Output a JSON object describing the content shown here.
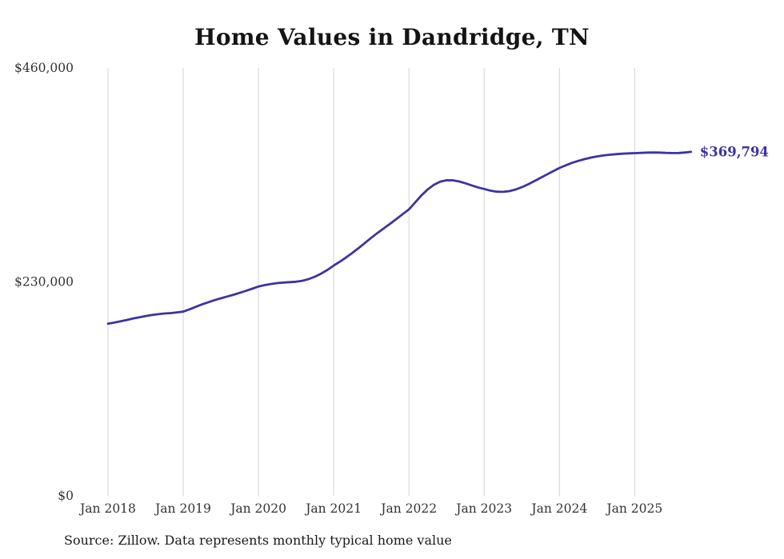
{
  "chart_data": {
    "type": "line",
    "title": "Home Values in Dandridge, TN",
    "source": "Source: Zillow. Data represents monthly typical home value",
    "end_label": "$369,794",
    "final_value": 369794,
    "ylabel": "",
    "xlabel": "",
    "ylim": [
      0,
      460000
    ],
    "grid": true,
    "legend": "none",
    "y_ticks": [
      {
        "value": 0,
        "label": "$0"
      },
      {
        "value": 230000,
        "label": "$230,000"
      },
      {
        "value": 460000,
        "label": "$460,000"
      }
    ],
    "x_ticks": [
      "Jan 2018",
      "Jan 2019",
      "Jan 2020",
      "Jan 2021",
      "Jan 2022",
      "Jan 2023",
      "Jan 2024",
      "Jan 2025"
    ],
    "months": [
      "2018-01",
      "2018-02",
      "2018-03",
      "2018-04",
      "2018-05",
      "2018-06",
      "2018-07",
      "2018-08",
      "2018-09",
      "2018-10",
      "2018-11",
      "2018-12",
      "2019-01",
      "2019-02",
      "2019-03",
      "2019-04",
      "2019-05",
      "2019-06",
      "2019-07",
      "2019-08",
      "2019-09",
      "2019-10",
      "2019-11",
      "2019-12",
      "2020-01",
      "2020-02",
      "2020-03",
      "2020-04",
      "2020-05",
      "2020-06",
      "2020-07",
      "2020-08",
      "2020-09",
      "2020-10",
      "2020-11",
      "2020-12",
      "2021-01",
      "2021-02",
      "2021-03",
      "2021-04",
      "2021-05",
      "2021-06",
      "2021-07",
      "2021-08",
      "2021-09",
      "2021-10",
      "2021-11",
      "2021-12",
      "2022-01",
      "2022-02",
      "2022-03",
      "2022-04",
      "2022-05",
      "2022-06",
      "2022-07",
      "2022-08",
      "2022-09",
      "2022-10",
      "2022-11",
      "2022-12",
      "2023-01",
      "2023-02",
      "2023-03",
      "2023-04",
      "2023-05",
      "2023-06",
      "2023-07",
      "2023-08",
      "2023-09",
      "2023-10",
      "2023-11",
      "2023-12",
      "2024-01",
      "2024-02",
      "2024-03",
      "2024-04",
      "2024-05",
      "2024-06",
      "2024-07",
      "2024-08",
      "2024-09",
      "2024-10",
      "2024-11",
      "2024-12",
      "2025-01",
      "2025-02",
      "2025-03",
      "2025-04",
      "2025-05",
      "2025-06",
      "2025-07",
      "2025-08",
      "2025-09",
      "2025-10"
    ],
    "values": [
      185000,
      186200,
      187600,
      189100,
      190600,
      192000,
      193300,
      194400,
      195300,
      196000,
      196500,
      197200,
      198000,
      200500,
      203200,
      205800,
      208200,
      210400,
      212400,
      214300,
      216200,
      218200,
      220400,
      222700,
      225000,
      226600,
      227800,
      228700,
      229300,
      229700,
      230200,
      231200,
      233000,
      235600,
      238900,
      242900,
      247500,
      251800,
      256400,
      261300,
      266500,
      272000,
      277500,
      282700,
      287600,
      292500,
      297600,
      302800,
      308000,
      315500,
      323000,
      329500,
      334500,
      337800,
      339300,
      339200,
      338000,
      336000,
      333800,
      331600,
      329900,
      328100,
      327000,
      326800,
      327600,
      329300,
      331800,
      334900,
      338300,
      341900,
      345500,
      349000,
      352500,
      355300,
      357900,
      360100,
      362000,
      363600,
      364900,
      365900,
      366700,
      367300,
      367800,
      368200,
      368400,
      368700,
      369000,
      369100,
      369000,
      368700,
      368500,
      368600,
      369100,
      369794
    ],
    "line_color": "#3d33a2",
    "grid_color": "#d2d2d2",
    "text_color": "#333333",
    "title_color": "#141414"
  }
}
